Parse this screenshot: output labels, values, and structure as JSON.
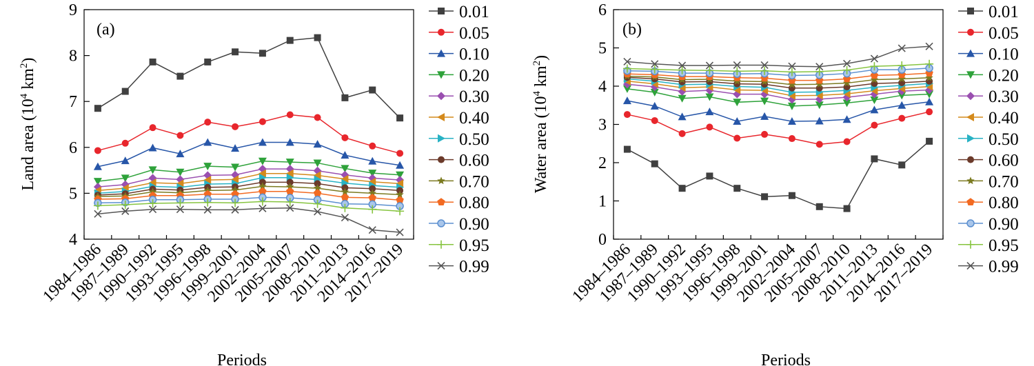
{
  "chart_data": [
    {
      "type": "line",
      "panel_label": "(a)",
      "title": "",
      "xlabel": "Periods",
      "ylabel_main": "Land area (10",
      "ylabel_sup": "4",
      "ylabel_tail": " km",
      "ylabel_sup2": "2",
      "ylabel_end": ")",
      "ylim": [
        4,
        9
      ],
      "yticks": [
        "4",
        "5",
        "6",
        "7",
        "8",
        "9"
      ],
      "grid": false,
      "legend_position": "right",
      "categories": [
        "1984–1986",
        "1987–1989",
        "1990–1992",
        "1993–1995",
        "1996–1998",
        "1999–2001",
        "2002–2004",
        "2005–2007",
        "2008–2010",
        "2011–2013",
        "2014–2016",
        "2017–2019"
      ],
      "series": [
        {
          "name": "0.01",
          "values": [
            6.85,
            7.22,
            7.86,
            7.55,
            7.86,
            8.08,
            8.05,
            8.33,
            8.39,
            7.08,
            7.25,
            6.64
          ]
        },
        {
          "name": "0.05",
          "values": [
            5.93,
            6.09,
            6.43,
            6.26,
            6.55,
            6.45,
            6.56,
            6.71,
            6.65,
            6.21,
            6.03,
            5.87
          ]
        },
        {
          "name": "0.10",
          "values": [
            5.58,
            5.71,
            5.99,
            5.86,
            6.11,
            5.98,
            6.11,
            6.11,
            6.07,
            5.83,
            5.7,
            5.61
          ]
        },
        {
          "name": "0.20",
          "values": [
            5.26,
            5.33,
            5.51,
            5.46,
            5.59,
            5.57,
            5.7,
            5.68,
            5.66,
            5.54,
            5.44,
            5.4
          ]
        },
        {
          "name": "0.30",
          "values": [
            5.14,
            5.19,
            5.33,
            5.3,
            5.39,
            5.4,
            5.53,
            5.53,
            5.49,
            5.4,
            5.33,
            5.29
          ]
        },
        {
          "name": "0.40",
          "values": [
            5.06,
            5.11,
            5.23,
            5.21,
            5.29,
            5.3,
            5.43,
            5.43,
            5.39,
            5.31,
            5.25,
            5.21
          ]
        },
        {
          "name": "0.50",
          "values": [
            5.0,
            5.04,
            5.15,
            5.13,
            5.2,
            5.21,
            5.34,
            5.34,
            5.3,
            5.22,
            5.17,
            5.13
          ]
        },
        {
          "name": "0.60",
          "values": [
            4.96,
            4.99,
            5.09,
            5.07,
            5.13,
            5.14,
            5.24,
            5.24,
            5.21,
            5.12,
            5.1,
            5.06
          ]
        },
        {
          "name": "0.70",
          "values": [
            4.93,
            4.94,
            5.03,
            5.01,
            5.06,
            5.07,
            5.15,
            5.14,
            5.11,
            5.03,
            5.0,
            4.97
          ]
        },
        {
          "name": "0.80",
          "values": [
            4.87,
            4.88,
            4.95,
            4.95,
            4.98,
            4.98,
            5.04,
            5.04,
            5.0,
            4.91,
            4.9,
            4.85
          ]
        },
        {
          "name": "0.90",
          "values": [
            4.79,
            4.8,
            4.86,
            4.86,
            4.87,
            4.87,
            4.91,
            4.9,
            4.86,
            4.77,
            4.76,
            4.72
          ]
        },
        {
          "name": "0.95",
          "values": [
            4.73,
            4.75,
            4.78,
            4.79,
            4.8,
            4.79,
            4.82,
            4.81,
            4.77,
            4.68,
            4.65,
            4.61
          ]
        },
        {
          "name": "0.99",
          "values": [
            4.55,
            4.61,
            4.65,
            4.65,
            4.64,
            4.64,
            4.67,
            4.68,
            4.6,
            4.47,
            4.2,
            4.15
          ]
        }
      ]
    },
    {
      "type": "line",
      "panel_label": "(b)",
      "title": "",
      "xlabel": "Periods",
      "ylabel_main": "Water area (10",
      "ylabel_sup": "4",
      "ylabel_tail": " km",
      "ylabel_sup2": "2",
      "ylabel_end": ")",
      "ylim": [
        0,
        6
      ],
      "yticks": [
        "0",
        "1",
        "2",
        "3",
        "4",
        "5",
        "6"
      ],
      "grid": false,
      "legend_position": "right",
      "categories": [
        "1984–1986",
        "1987–1989",
        "1990–1992",
        "1993–1995",
        "1996–1998",
        "1999–2001",
        "2002–2004",
        "2005–2007",
        "2008–2010",
        "2011–2013",
        "2014–2016",
        "2017–2019"
      ],
      "series": [
        {
          "name": "0.01",
          "values": [
            2.35,
            1.97,
            1.33,
            1.65,
            1.33,
            1.11,
            1.14,
            0.85,
            0.8,
            2.1,
            1.94,
            2.56
          ]
        },
        {
          "name": "0.05",
          "values": [
            3.26,
            3.1,
            2.76,
            2.93,
            2.64,
            2.74,
            2.63,
            2.48,
            2.55,
            2.98,
            3.16,
            3.33
          ]
        },
        {
          "name": "0.10",
          "values": [
            3.62,
            3.48,
            3.2,
            3.33,
            3.08,
            3.21,
            3.08,
            3.09,
            3.13,
            3.38,
            3.5,
            3.59
          ]
        },
        {
          "name": "0.20",
          "values": [
            3.93,
            3.84,
            3.68,
            3.72,
            3.58,
            3.61,
            3.48,
            3.51,
            3.56,
            3.64,
            3.76,
            3.79
          ]
        },
        {
          "name": "0.30",
          "values": [
            4.05,
            3.98,
            3.86,
            3.89,
            3.79,
            3.79,
            3.65,
            3.66,
            3.71,
            3.79,
            3.87,
            3.9
          ]
        },
        {
          "name": "0.40",
          "values": [
            4.13,
            4.06,
            3.96,
            3.98,
            3.9,
            3.89,
            3.75,
            3.76,
            3.8,
            3.88,
            3.94,
            3.99
          ]
        },
        {
          "name": "0.50",
          "values": [
            4.19,
            4.13,
            4.04,
            4.05,
            3.99,
            3.97,
            3.84,
            3.85,
            3.89,
            3.97,
            4.02,
            4.07
          ]
        },
        {
          "name": "0.60",
          "values": [
            4.23,
            4.19,
            4.11,
            4.12,
            4.06,
            4.05,
            3.95,
            3.95,
            3.98,
            4.07,
            4.09,
            4.13
          ]
        },
        {
          "name": "0.70",
          "values": [
            4.26,
            4.24,
            4.17,
            4.18,
            4.13,
            4.12,
            4.04,
            4.05,
            4.08,
            4.17,
            4.19,
            4.22
          ]
        },
        {
          "name": "0.80",
          "values": [
            4.32,
            4.3,
            4.25,
            4.25,
            4.22,
            4.21,
            4.15,
            4.15,
            4.19,
            4.28,
            4.3,
            4.34
          ]
        },
        {
          "name": "0.90",
          "values": [
            4.4,
            4.39,
            4.34,
            4.34,
            4.32,
            4.33,
            4.28,
            4.29,
            4.33,
            4.43,
            4.43,
            4.47
          ]
        },
        {
          "name": "0.95",
          "values": [
            4.46,
            4.44,
            4.42,
            4.41,
            4.39,
            4.4,
            4.37,
            4.38,
            4.42,
            4.52,
            4.54,
            4.58
          ]
        },
        {
          "name": "0.99",
          "values": [
            4.64,
            4.58,
            4.54,
            4.54,
            4.55,
            4.55,
            4.52,
            4.51,
            4.59,
            4.72,
            4.99,
            5.04
          ]
        }
      ]
    }
  ],
  "series_style": [
    {
      "color": "#404040",
      "marker": "square"
    },
    {
      "color": "#e8262c",
      "marker": "circle"
    },
    {
      "color": "#2756a8",
      "marker": "triangle-up"
    },
    {
      "color": "#2ea23a",
      "marker": "triangle-down"
    },
    {
      "color": "#9a4fb0",
      "marker": "diamond"
    },
    {
      "color": "#d48a1c",
      "marker": "triangle-left"
    },
    {
      "color": "#28b2c4",
      "marker": "triangle-right"
    },
    {
      "color": "#6b3a2a",
      "marker": "circle"
    },
    {
      "color": "#7b7a20",
      "marker": "star"
    },
    {
      "color": "#f26a22",
      "marker": "pentagon"
    },
    {
      "color": "#5b8fcf",
      "marker": "circle-light"
    },
    {
      "color": "#86c43f",
      "marker": "plus"
    },
    {
      "color": "#555555",
      "marker": "cross"
    }
  ]
}
